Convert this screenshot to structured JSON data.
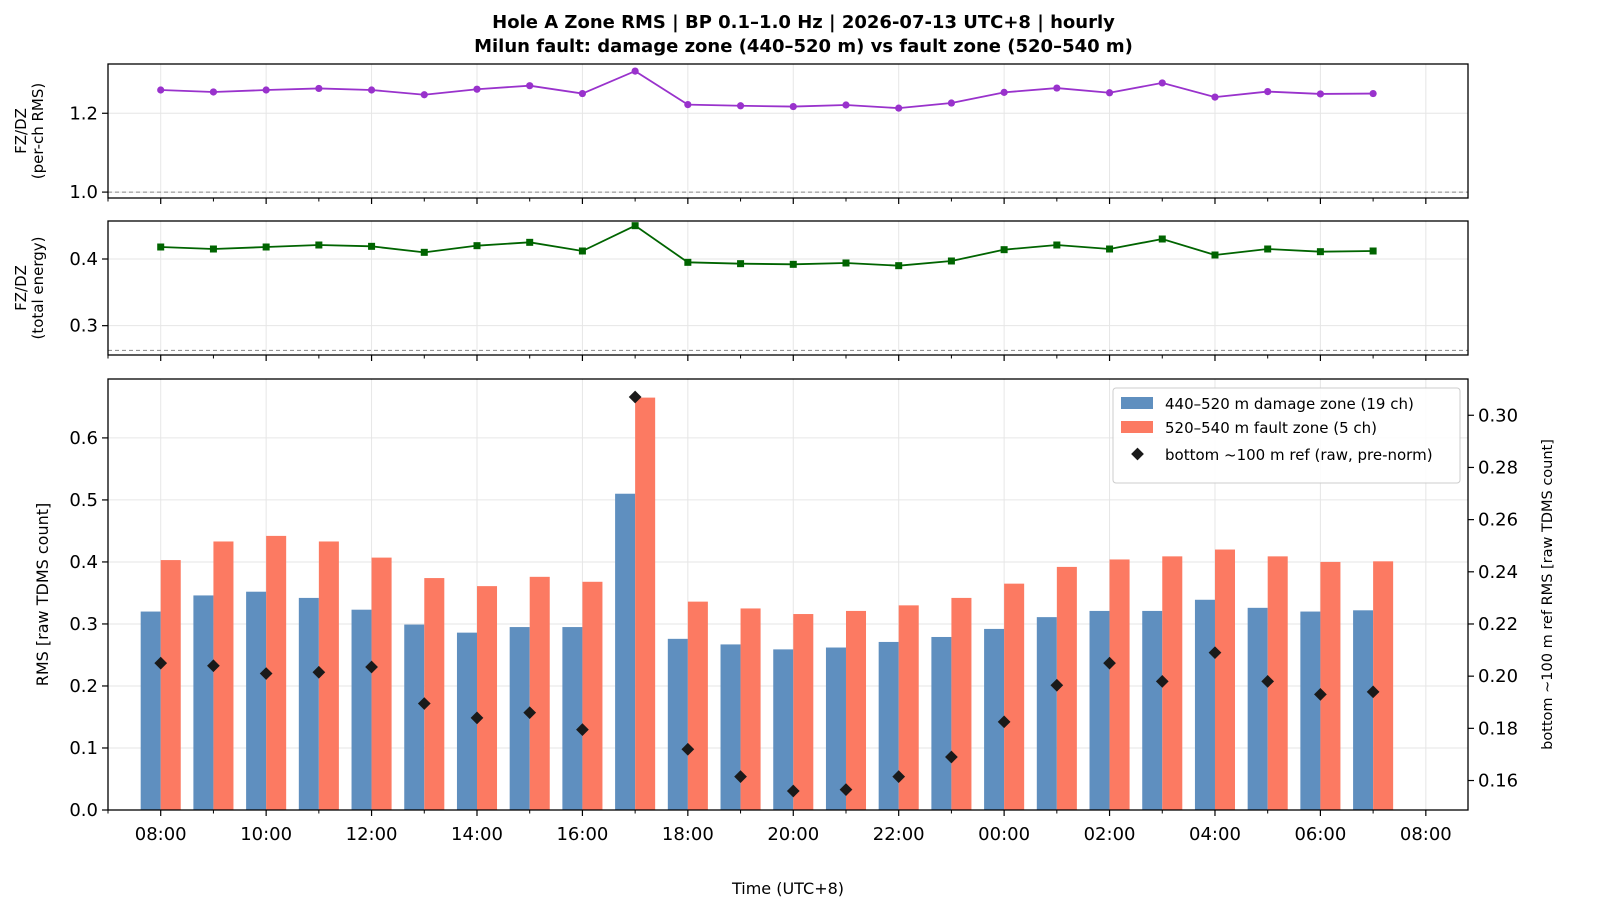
{
  "title": {
    "line1": "Hole A Zone RMS  |  BP 0.1–1.0 Hz  |  2026-07-13 UTC+8  |  hourly",
    "line2": "Milun fault: damage zone (440–520 m) vs fault zone (520–540 m)"
  },
  "colors": {
    "damage_zone": "#5f8fbf",
    "fault_zone": "#fc7a62",
    "reference": "#1a1a1a",
    "per_ch_ratio": "#9932cc",
    "energy_ratio": "#006400",
    "grid": "#e6e6e6",
    "ref_line": "#888888"
  },
  "chart_data": [
    {
      "type": "line",
      "ylabel": "FZ/DZ\n(per-ch RMS)",
      "ylim": [
        0.985,
        1.325
      ],
      "yticks": [
        "1.0",
        "1.2"
      ],
      "ytick_values": [
        1.0,
        1.2
      ],
      "reference_line": 1.0,
      "grid": true,
      "marker": "circle",
      "series": [
        {
          "values": [
            1.259,
            1.254,
            1.259,
            1.263,
            1.259,
            1.247,
            1.261,
            1.27,
            1.25,
            1.307,
            1.222,
            1.219,
            1.217,
            1.221,
            1.213,
            1.226,
            1.253,
            1.264,
            1.252,
            1.277,
            1.241,
            1.255,
            1.249,
            1.25
          ]
        }
      ]
    },
    {
      "type": "line",
      "ylabel": "FZ/DZ\n(total energy)",
      "ylim": [
        0.256,
        0.457
      ],
      "yticks": [
        "0.3",
        "0.4"
      ],
      "ytick_values": [
        0.3,
        0.4
      ],
      "reference_line": 0.263,
      "grid": true,
      "marker": "square",
      "series": [
        {
          "values": [
            0.418,
            0.415,
            0.418,
            0.421,
            0.419,
            0.41,
            0.42,
            0.425,
            0.412,
            0.45,
            0.395,
            0.393,
            0.392,
            0.394,
            0.39,
            0.397,
            0.414,
            0.421,
            0.415,
            0.43,
            0.406,
            0.415,
            0.411,
            0.412
          ]
        }
      ]
    },
    {
      "type": "bar",
      "xlabel": "Time (UTC+8)",
      "ylabel": "RMS  [raw TDMS count]",
      "ylabel_right": "bottom ~100 m ref RMS  [raw TDMS count]",
      "ylim": [
        0,
        0.695
      ],
      "yticks": [
        "0.0",
        "0.1",
        "0.2",
        "0.3",
        "0.4",
        "0.5",
        "0.6"
      ],
      "ytick_values": [
        0,
        0.1,
        0.2,
        0.3,
        0.4,
        0.5,
        0.6
      ],
      "ylim_right": [
        0.1487,
        0.3139
      ],
      "yticks_right": [
        "0.16",
        "0.18",
        "0.20",
        "0.22",
        "0.24",
        "0.26",
        "0.28",
        "0.30"
      ],
      "ytick_values_right": [
        0.16,
        0.18,
        0.2,
        0.22,
        0.24,
        0.26,
        0.28,
        0.3
      ],
      "x_hours_offset_range": [
        -1.0,
        24.8
      ],
      "xtick_labels": [
        "08:00",
        "10:00",
        "12:00",
        "14:00",
        "16:00",
        "18:00",
        "20:00",
        "22:00",
        "00:00",
        "02:00",
        "04:00",
        "06:00",
        "08:00"
      ],
      "xtick_offsets": [
        0,
        2,
        4,
        6,
        8,
        10,
        12,
        14,
        16,
        18,
        20,
        22,
        24
      ],
      "hours": [
        "08:00",
        "09:00",
        "10:00",
        "11:00",
        "12:00",
        "13:00",
        "14:00",
        "15:00",
        "16:00",
        "17:00",
        "18:00",
        "19:00",
        "20:00",
        "21:00",
        "22:00",
        "23:00",
        "00:00",
        "01:00",
        "02:00",
        "03:00",
        "04:00",
        "05:00",
        "06:00",
        "07:00"
      ],
      "legend_position": "upper-right",
      "grid": true,
      "series": [
        {
          "name": "440–520 m  damage zone (19 ch)",
          "values": [
            0.32,
            0.346,
            0.352,
            0.342,
            0.323,
            0.299,
            0.286,
            0.295,
            0.295,
            0.51,
            0.276,
            0.267,
            0.259,
            0.262,
            0.271,
            0.279,
            0.292,
            0.311,
            0.321,
            0.321,
            0.339,
            0.326,
            0.32,
            0.322
          ]
        },
        {
          "name": "520–540 m  fault zone (5 ch)",
          "values": [
            0.403,
            0.433,
            0.442,
            0.433,
            0.407,
            0.374,
            0.361,
            0.376,
            0.368,
            0.665,
            0.336,
            0.325,
            0.316,
            0.321,
            0.33,
            0.342,
            0.365,
            0.392,
            0.404,
            0.409,
            0.42,
            0.409,
            0.4,
            0.401
          ]
        },
        {
          "name": "bottom ~100 m ref (raw, pre-norm)",
          "axis": "right",
          "values": [
            0.205,
            0.204,
            0.201,
            0.2015,
            0.2035,
            0.1895,
            0.184,
            0.186,
            0.1795,
            0.307,
            0.172,
            0.1615,
            0.156,
            0.1565,
            0.1615,
            0.169,
            0.1825,
            0.1965,
            0.205,
            0.198,
            0.209,
            0.198,
            0.193,
            0.194
          ]
        }
      ]
    }
  ]
}
